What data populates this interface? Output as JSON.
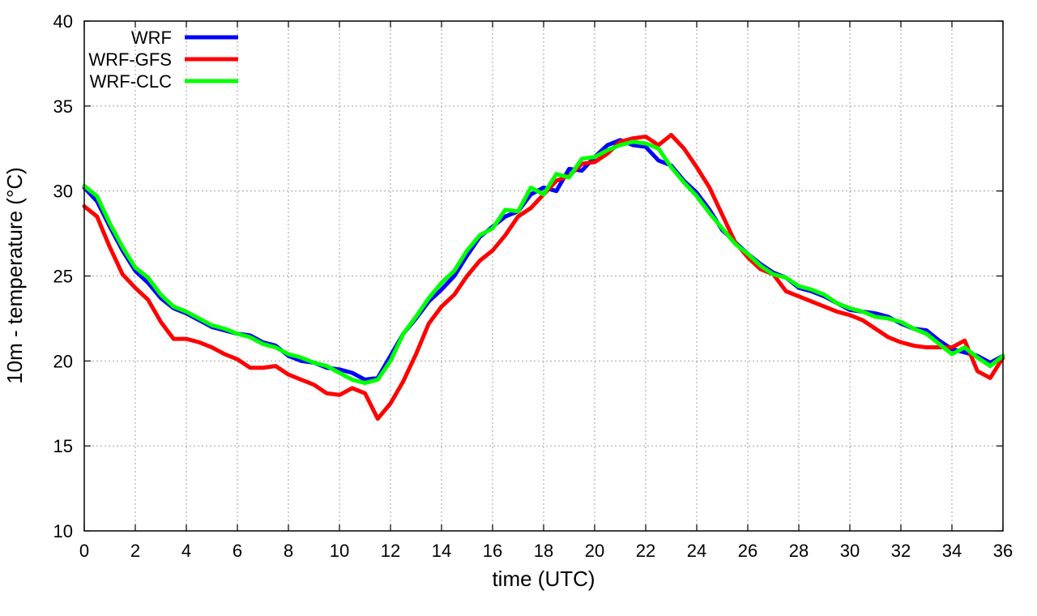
{
  "chart_data": {
    "type": "line",
    "title": "",
    "xlabel": "time (UTC)",
    "ylabel": "10m - temperature (°C)",
    "xlim": [
      0,
      36
    ],
    "ylim": [
      10,
      40
    ],
    "xticks": [
      "0",
      "2",
      "4",
      "6",
      "8",
      "10",
      "12",
      "14",
      "16",
      "18",
      "20",
      "22",
      "24",
      "26",
      "28",
      "30",
      "32",
      "34",
      "36"
    ],
    "yticks": [
      "10",
      "15",
      "20",
      "25",
      "30",
      "35",
      "40"
    ],
    "grid": true,
    "legend_position": "top-left",
    "x": [
      0,
      0.5,
      1,
      1.5,
      2,
      2.5,
      3,
      3.5,
      4,
      4.5,
      5,
      5.5,
      6,
      6.5,
      7,
      7.5,
      8,
      8.5,
      9,
      9.5,
      10,
      10.5,
      11,
      11.5,
      12,
      12.5,
      13,
      13.5,
      14,
      14.5,
      15,
      15.5,
      16,
      16.5,
      17,
      17.5,
      18,
      18.5,
      19,
      19.5,
      20,
      20.5,
      21,
      21.5,
      22,
      22.5,
      23,
      23.5,
      24,
      24.5,
      25,
      25.5,
      26,
      26.5,
      27,
      27.5,
      28,
      28.5,
      29,
      29.5,
      30,
      30.5,
      31,
      31.5,
      32,
      32.5,
      33,
      33.5,
      34,
      34.5,
      35,
      35.5,
      36
    ],
    "series": [
      {
        "name": "WRF",
        "color": "#0000ff",
        "values": [
          30.2,
          29.4,
          27.9,
          26.5,
          25.3,
          24.6,
          23.7,
          23.1,
          22.8,
          22.4,
          22.0,
          21.8,
          21.6,
          21.5,
          21.1,
          20.9,
          20.3,
          20.0,
          19.9,
          19.6,
          19.5,
          19.3,
          18.9,
          19.0,
          20.3,
          21.6,
          22.5,
          23.5,
          24.2,
          25.0,
          26.2,
          27.3,
          27.9,
          28.5,
          28.8,
          29.8,
          30.2,
          30.0,
          31.3,
          31.2,
          32.0,
          32.7,
          33.0,
          32.7,
          32.6,
          31.8,
          31.5,
          30.6,
          29.9,
          28.9,
          27.7,
          27.0,
          26.3,
          25.7,
          25.2,
          24.9,
          24.3,
          24.1,
          23.8,
          23.4,
          23.0,
          22.9,
          22.8,
          22.6,
          22.2,
          21.9,
          21.8,
          21.2,
          20.7,
          20.5,
          20.3,
          19.9,
          20.3
        ]
      },
      {
        "name": "WRF-GFS",
        "color": "#ff0000",
        "values": [
          29.1,
          28.5,
          26.7,
          25.1,
          24.3,
          23.6,
          22.3,
          21.3,
          21.3,
          21.1,
          20.8,
          20.4,
          20.1,
          19.6,
          19.6,
          19.7,
          19.2,
          18.9,
          18.6,
          18.1,
          18.0,
          18.4,
          18.1,
          16.6,
          17.5,
          18.8,
          20.4,
          22.2,
          23.2,
          23.9,
          25.0,
          25.9,
          26.5,
          27.4,
          28.5,
          29.0,
          29.8,
          30.6,
          30.9,
          31.6,
          31.7,
          32.2,
          32.9,
          33.1,
          33.2,
          32.7,
          33.3,
          32.5,
          31.4,
          30.2,
          28.6,
          27.0,
          26.1,
          25.4,
          25.1,
          24.1,
          23.8,
          23.5,
          23.2,
          22.9,
          22.7,
          22.4,
          21.9,
          21.4,
          21.1,
          20.9,
          20.8,
          20.8,
          20.8,
          21.2,
          19.4,
          19.0,
          20.2
        ]
      },
      {
        "name": "WRF-CLC",
        "color": "#00ff00",
        "values": [
          30.3,
          29.7,
          28.1,
          26.7,
          25.5,
          24.9,
          23.9,
          23.2,
          22.9,
          22.5,
          22.1,
          21.9,
          21.6,
          21.4,
          21.0,
          20.8,
          20.4,
          20.2,
          19.9,
          19.7,
          19.3,
          18.9,
          18.7,
          18.9,
          20.0,
          21.6,
          22.6,
          23.7,
          24.6,
          25.3,
          26.5,
          27.4,
          27.8,
          28.9,
          28.8,
          30.2,
          29.8,
          31.0,
          30.8,
          31.9,
          32.0,
          32.4,
          32.7,
          32.9,
          32.8,
          32.5,
          31.4,
          30.5,
          29.7,
          28.7,
          27.8,
          26.9,
          26.3,
          25.6,
          25.1,
          24.9,
          24.4,
          24.2,
          23.9,
          23.4,
          23.1,
          22.9,
          22.6,
          22.5,
          22.3,
          21.9,
          21.6,
          21.0,
          20.4,
          20.8,
          20.2,
          19.7,
          20.3
        ]
      }
    ]
  }
}
